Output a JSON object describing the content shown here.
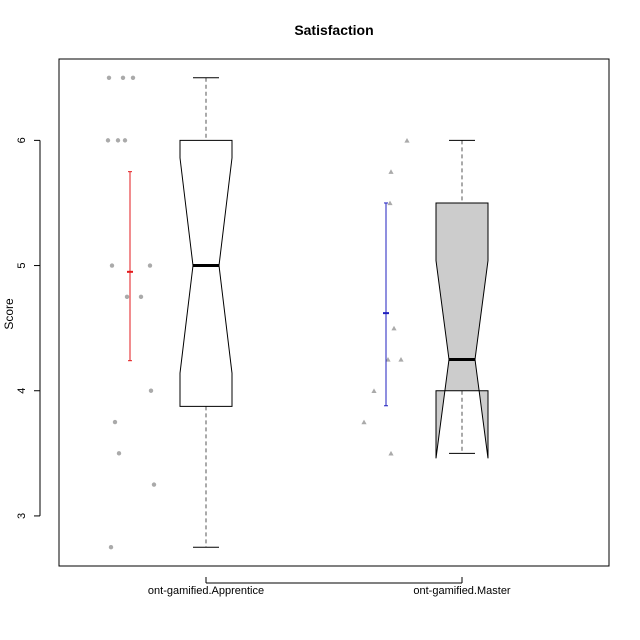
{
  "chart_data": {
    "type": "boxplot",
    "title": "Satisfaction",
    "xlabel": "",
    "ylabel": "Score",
    "ylim": [
      2.6,
      6.65
    ],
    "yticks": [
      3,
      4,
      5,
      6
    ],
    "grid": false,
    "legend": "none",
    "categories": [
      "ont-gamified.Apprentice",
      "ont-gamified.Master"
    ],
    "boxes": [
      {
        "category": "ont-gamified.Apprentice",
        "fill": "#ffffff",
        "whisker_low": 2.75,
        "q1": 3.875,
        "median": 5.0,
        "q3": 6.0,
        "whisker_high": 6.5,
        "notch_low": 4.14,
        "notch_high": 5.86,
        "mean": 4.95,
        "ci_low": 4.24,
        "ci_high": 5.75,
        "ci_color": "#e31a1c",
        "point_shape": "circle",
        "points": [
          6.5,
          6.5,
          6.5,
          6.0,
          6.0,
          6.0,
          5.0,
          5.0,
          4.75,
          4.75,
          4.0,
          3.75,
          3.5,
          3.25,
          2.75
        ]
      },
      {
        "category": "ont-gamified.Master",
        "fill": "#cccccc",
        "whisker_low": 3.5,
        "q1": 4.0,
        "median": 4.25,
        "q3": 5.5,
        "whisker_high": 6.0,
        "notch_low": 3.46,
        "notch_high": 5.04,
        "mean": 4.62,
        "ci_low": 3.88,
        "ci_high": 5.5,
        "ci_color": "#1f1fbf",
        "point_shape": "triangle",
        "points": [
          6.0,
          5.75,
          5.5,
          4.5,
          4.25,
          4.25,
          4.0,
          3.75,
          3.5
        ]
      }
    ]
  }
}
